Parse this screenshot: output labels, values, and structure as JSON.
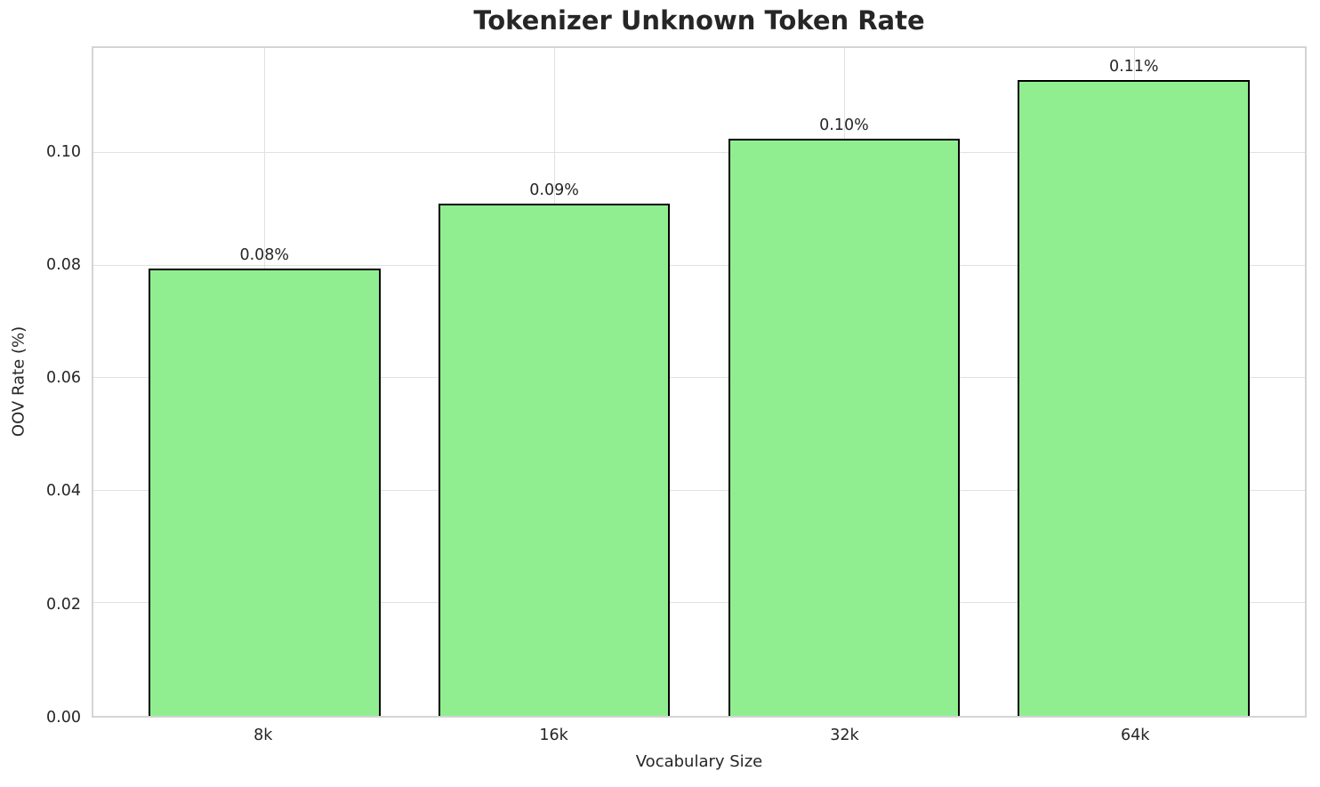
{
  "chart_data": {
    "type": "bar",
    "title": "Tokenizer Unknown Token Rate",
    "xlabel": "Vocabulary Size",
    "ylabel": "OOV Rate (%)",
    "categories": [
      "8k",
      "16k",
      "32k",
      "64k"
    ],
    "values": [
      0.0795,
      0.091,
      0.1025,
      0.113
    ],
    "bar_labels": [
      "0.08%",
      "0.09%",
      "0.10%",
      "0.11%"
    ],
    "y_ticks": [
      0.0,
      0.02,
      0.04,
      0.06,
      0.08,
      0.1
    ],
    "y_tick_labels": [
      "0.00",
      "0.02",
      "0.04",
      "0.06",
      "0.08",
      "0.10"
    ],
    "ylim": [
      0,
      0.11865
    ],
    "grid": true,
    "legend": "none",
    "colors": {
      "bar_fill": "#90EE90",
      "bar_edge": "#000000",
      "grid": "#e1e1e1",
      "spine": "#d4d4d4",
      "text": "#262626",
      "background": "#ffffff"
    }
  }
}
